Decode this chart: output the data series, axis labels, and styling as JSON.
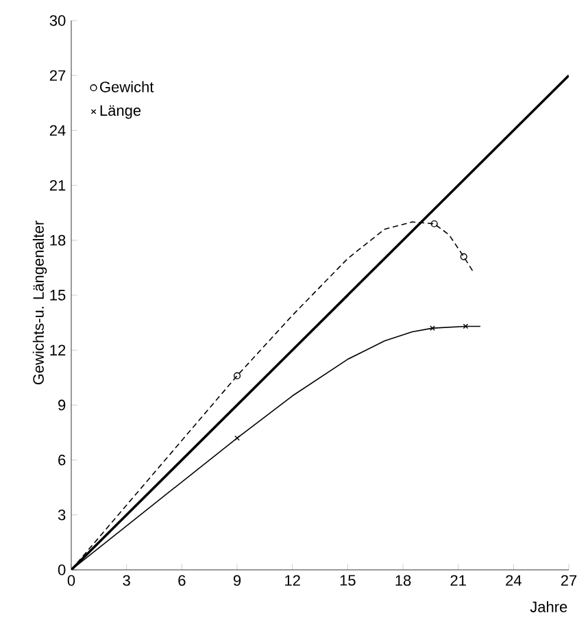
{
  "chart_data": {
    "type": "line",
    "xlabel": "Jahre",
    "ylabel": "Gewichts-u. Längenalter",
    "xlim": [
      0,
      27
    ],
    "ylim": [
      0,
      30
    ],
    "xticks": [
      0,
      3,
      6,
      9,
      12,
      15,
      18,
      21,
      24,
      27
    ],
    "yticks": [
      0,
      3,
      6,
      9,
      12,
      15,
      18,
      21,
      24,
      27,
      30
    ],
    "grid": false,
    "legend": "top left",
    "series": [
      {
        "color": "#000000",
        "line_style": "solid",
        "marker": "none",
        "x": [
          0,
          27
        ],
        "values": [
          0,
          27
        ]
      },
      {
        "color": "#000000",
        "line_style": "dashed",
        "marker": "none",
        "x": [
          0,
          9,
          12,
          15,
          17,
          18.5,
          19.7,
          20.5,
          21.3,
          21.8
        ],
        "values": [
          0,
          10.6,
          13.9,
          17.0,
          18.6,
          19.0,
          18.9,
          18.3,
          17.1,
          16.3
        ]
      },
      {
        "type": "scatter",
        "name": "Gewicht",
        "color": "#000000",
        "marker": "circle",
        "x": [
          9,
          19.7,
          21.3
        ],
        "values": [
          10.6,
          18.9,
          17.1
        ]
      },
      {
        "color": "#000000",
        "line_style": "solid",
        "marker": "none",
        "x": [
          0,
          9,
          12,
          15,
          17,
          18.5,
          19.6,
          21.4,
          22.2
        ],
        "values": [
          0,
          7.2,
          9.5,
          11.5,
          12.5,
          13.0,
          13.2,
          13.3,
          13.3
        ]
      },
      {
        "type": "scatter",
        "name": "Länge",
        "color": "#000000",
        "marker": "cross",
        "x": [
          9,
          19.6,
          21.4
        ],
        "values": [
          7.2,
          13.2,
          13.3
        ]
      }
    ]
  }
}
